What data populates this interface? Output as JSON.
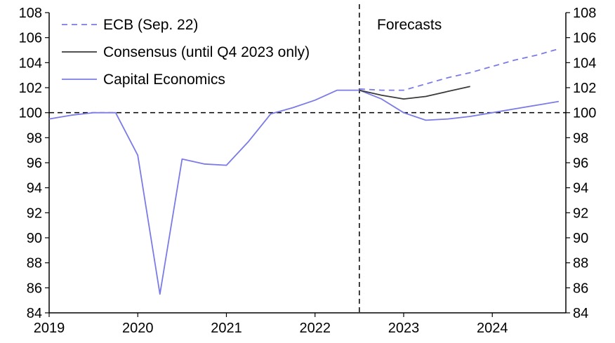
{
  "chart_data": {
    "type": "line",
    "xlim": [
      2019,
      2024.83
    ],
    "ylim": [
      84,
      108
    ],
    "y_ticks": [
      84,
      86,
      88,
      90,
      92,
      94,
      96,
      98,
      100,
      102,
      104,
      106,
      108
    ],
    "x_ticks": [
      2019,
      2020,
      2021,
      2022,
      2023,
      2024
    ],
    "grid": false,
    "legend_position": "top-left",
    "dual_y_axis": true,
    "reference_line_y": 100,
    "forecast_divider_x": 2022.5,
    "annotation": "Forecasts",
    "series": [
      {
        "name": "ECB (Sep. 22)",
        "style": "dashed",
        "color": "#7b7be8",
        "points": [
          {
            "x": 2022.5,
            "y": 101.9
          },
          {
            "x": 2022.75,
            "y": 101.8
          },
          {
            "x": 2023.0,
            "y": 101.8
          },
          {
            "x": 2023.25,
            "y": 102.3
          },
          {
            "x": 2023.5,
            "y": 102.8
          },
          {
            "x": 2023.75,
            "y": 103.2
          },
          {
            "x": 2024.0,
            "y": 103.7
          },
          {
            "x": 2024.25,
            "y": 104.2
          },
          {
            "x": 2024.5,
            "y": 104.6
          },
          {
            "x": 2024.75,
            "y": 105.1
          }
        ]
      },
      {
        "name": "Consensus (until Q4 2023 only)",
        "style": "solid",
        "color": "#3a3a3a",
        "points": [
          {
            "x": 2022.5,
            "y": 101.8
          },
          {
            "x": 2022.75,
            "y": 101.4
          },
          {
            "x": 2023.0,
            "y": 101.1
          },
          {
            "x": 2023.25,
            "y": 101.3
          },
          {
            "x": 2023.5,
            "y": 101.7
          },
          {
            "x": 2023.75,
            "y": 102.1
          }
        ]
      },
      {
        "name": "Capital Economics",
        "style": "solid",
        "color": "#7b7be8",
        "points": [
          {
            "x": 2019.0,
            "y": 99.5
          },
          {
            "x": 2019.25,
            "y": 99.8
          },
          {
            "x": 2019.5,
            "y": 100.0
          },
          {
            "x": 2019.75,
            "y": 100.0
          },
          {
            "x": 2020.0,
            "y": 96.6
          },
          {
            "x": 2020.25,
            "y": 85.5
          },
          {
            "x": 2020.5,
            "y": 96.3
          },
          {
            "x": 2020.75,
            "y": 95.9
          },
          {
            "x": 2021.0,
            "y": 95.8
          },
          {
            "x": 2021.25,
            "y": 97.7
          },
          {
            "x": 2021.5,
            "y": 99.9
          },
          {
            "x": 2021.75,
            "y": 100.4
          },
          {
            "x": 2022.0,
            "y": 101.0
          },
          {
            "x": 2022.25,
            "y": 101.8
          },
          {
            "x": 2022.5,
            "y": 101.8
          },
          {
            "x": 2022.75,
            "y": 101.1
          },
          {
            "x": 2023.0,
            "y": 100.0
          },
          {
            "x": 2023.25,
            "y": 99.4
          },
          {
            "x": 2023.5,
            "y": 99.5
          },
          {
            "x": 2023.75,
            "y": 99.7
          },
          {
            "x": 2024.0,
            "y": 100.0
          },
          {
            "x": 2024.25,
            "y": 100.3
          },
          {
            "x": 2024.5,
            "y": 100.6
          },
          {
            "x": 2024.75,
            "y": 100.9
          }
        ]
      }
    ]
  }
}
